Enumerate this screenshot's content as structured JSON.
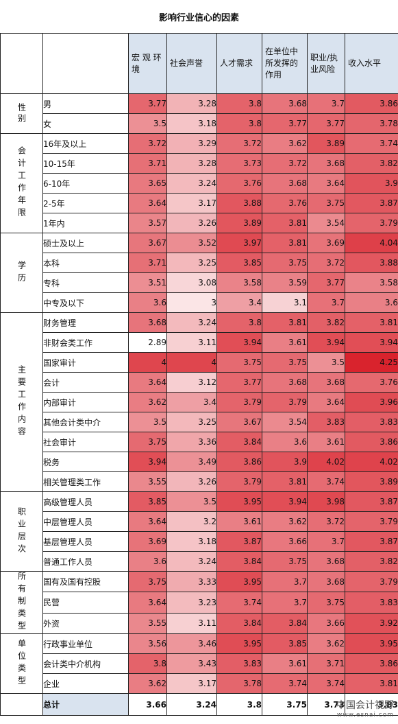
{
  "title": "影响行业信心的因素",
  "watermark": {
    "name": "中国会计视野",
    "url": "www.esnai.com"
  },
  "chart_data": {
    "type": "heatmap",
    "title": "影响行业信心的因素",
    "columns": [
      "宏 观 环境",
      "社会声誉",
      "人才需求",
      "在单位中所发挥的作用",
      "职业/执业风险",
      "收入水平"
    ],
    "color_low": "#ffffff",
    "color_high": "#d9232d",
    "value_range": [
      2.89,
      4.25
    ],
    "groups": [
      {
        "name": "性别",
        "rows": [
          {
            "label": "男",
            "values": [
              3.77,
              3.28,
              3.8,
              3.68,
              3.7,
              3.86
            ]
          },
          {
            "label": "女",
            "values": [
              3.5,
              3.18,
              3.8,
              3.77,
              3.77,
              3.78
            ]
          }
        ]
      },
      {
        "name": "会计工作年限",
        "rows": [
          {
            "label": "16年及以上",
            "values": [
              3.72,
              3.29,
              3.72,
              3.62,
              3.89,
              3.74
            ]
          },
          {
            "label": "10-15年",
            "values": [
              3.71,
              3.28,
              3.73,
              3.72,
              3.68,
              3.82
            ]
          },
          {
            "label": "6-10年",
            "values": [
              3.65,
              3.24,
              3.76,
              3.68,
              3.64,
              3.9
            ]
          },
          {
            "label": "2-5年",
            "values": [
              3.64,
              3.17,
              3.88,
              3.76,
              3.75,
              3.87
            ]
          },
          {
            "label": "1年内",
            "values": [
              3.57,
              3.26,
              3.89,
              3.81,
              3.54,
              3.79
            ]
          }
        ]
      },
      {
        "name": "学历",
        "rows": [
          {
            "label": "硕士及以上",
            "values": [
              3.67,
              3.52,
              3.97,
              3.81,
              3.69,
              4.04
            ]
          },
          {
            "label": "本科",
            "values": [
              3.71,
              3.25,
              3.85,
              3.75,
              3.72,
              3.88
            ]
          },
          {
            "label": "专科",
            "values": [
              3.51,
              3.08,
              3.58,
              3.59,
              3.77,
              3.58
            ]
          },
          {
            "label": "中专及以下",
            "values": [
              3.6,
              3,
              3.4,
              3.1,
              3.7,
              3.6
            ]
          }
        ]
      },
      {
        "name": "主要工作内容",
        "rows": [
          {
            "label": "财务管理",
            "values": [
              3.68,
              3.24,
              3.8,
              3.81,
              3.82,
              3.81
            ]
          },
          {
            "label": "非财会类工作",
            "values": [
              2.89,
              3.11,
              3.94,
              3.61,
              3.94,
              3.94
            ]
          },
          {
            "label": "国家审计",
            "values": [
              4,
              4,
              3.75,
              3.75,
              3.5,
              4.25
            ]
          },
          {
            "label": "会计",
            "values": [
              3.64,
              3.12,
              3.77,
              3.68,
              3.68,
              3.76
            ]
          },
          {
            "label": "内部审计",
            "values": [
              3.62,
              3.4,
              3.79,
              3.79,
              3.64,
              3.96
            ]
          },
          {
            "label": "其他会计类中介",
            "values": [
              3.5,
              3.25,
              3.67,
              3.54,
              3.83,
              3.83
            ]
          },
          {
            "label": "社会审计",
            "values": [
              3.75,
              3.36,
              3.84,
              3.6,
              3.61,
              3.86
            ]
          },
          {
            "label": "税务",
            "values": [
              3.94,
              3.49,
              3.86,
              3.9,
              4.02,
              4.02
            ]
          },
          {
            "label": "相关管理类工作",
            "values": [
              3.55,
              3.26,
              3.79,
              3.81,
              3.74,
              3.89
            ]
          }
        ]
      },
      {
        "name": "职业层次",
        "rows": [
          {
            "label": "高级管理人员",
            "values": [
              3.85,
              3.5,
              3.95,
              3.94,
              3.98,
              3.87
            ]
          },
          {
            "label": "中层管理人员",
            "values": [
              3.64,
              3.2,
              3.61,
              3.62,
              3.72,
              3.79
            ]
          },
          {
            "label": "基层管理人员",
            "values": [
              3.69,
              3.18,
              3.87,
              3.66,
              3.7,
              3.87
            ]
          },
          {
            "label": "普通工作人员",
            "values": [
              3.6,
              3.24,
              3.84,
              3.75,
              3.68,
              3.82
            ]
          }
        ]
      },
      {
        "name": "所有制类型",
        "rows": [
          {
            "label": "国有及国有控股",
            "values": [
              3.75,
              3.33,
              3.95,
              3.7,
              3.68,
              3.79
            ]
          },
          {
            "label": "民营",
            "values": [
              3.64,
              3.23,
              3.74,
              3.7,
              3.75,
              3.83
            ]
          },
          {
            "label": "外资",
            "values": [
              3.55,
              3.11,
              3.84,
              3.84,
              3.66,
              3.92
            ]
          }
        ]
      },
      {
        "name": "单位类型",
        "rows": [
          {
            "label": "行政事业单位",
            "values": [
              3.56,
              3.46,
              3.95,
              3.85,
              3.62,
              3.95
            ]
          },
          {
            "label": "会计类中介机构",
            "values": [
              3.8,
              3.43,
              3.83,
              3.61,
              3.71,
              3.86
            ]
          },
          {
            "label": "企业",
            "values": [
              3.62,
              3.17,
              3.78,
              3.74,
              3.74,
              3.81
            ]
          }
        ]
      }
    ],
    "total": {
      "label": "总计",
      "values": [
        3.66,
        3.24,
        3.8,
        3.75,
        3.73,
        3.83
      ]
    }
  }
}
